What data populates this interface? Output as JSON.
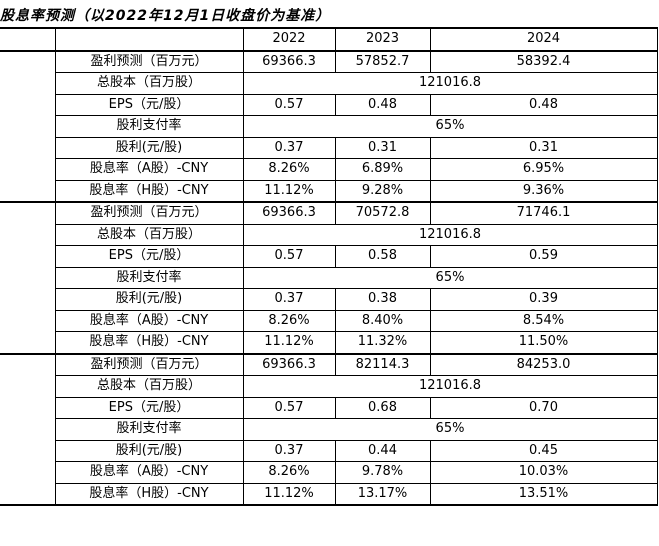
{
  "title": "股息率预测（以2022年12月1日收盘价为基准）",
  "header": {
    "years": [
      "2022",
      "2023",
      "2024"
    ]
  },
  "scenarios": [
    {
      "rows": [
        {
          "label": "盈利预测（百万元）",
          "values": [
            "69366.3",
            "57852.7",
            "58392.4"
          ]
        },
        {
          "label": "总股本（百万股）",
          "merged": "121016.8"
        },
        {
          "label": "EPS（元/股）",
          "values": [
            "0.57",
            "0.48",
            "0.48"
          ]
        },
        {
          "label": "股利支付率",
          "merged": "65%"
        },
        {
          "label": "股利(元/股)",
          "values": [
            "0.37",
            "0.31",
            "0.31"
          ]
        },
        {
          "label": "股息率（A股）-CNY",
          "values": [
            "8.26%",
            "6.89%",
            "6.95%"
          ]
        },
        {
          "label": "股息率（H股）-CNY",
          "values": [
            "11.12%",
            "9.28%",
            "9.36%"
          ]
        }
      ]
    },
    {
      "rows": [
        {
          "label": "盈利预测（百万元）",
          "values": [
            "69366.3",
            "70572.8",
            "71746.1"
          ]
        },
        {
          "label": "总股本（百万股）",
          "merged": "121016.8"
        },
        {
          "label": "EPS（元/股）",
          "values": [
            "0.57",
            "0.58",
            "0.59"
          ]
        },
        {
          "label": "股利支付率",
          "merged": "65%"
        },
        {
          "label": "股利(元/股)",
          "values": [
            "0.37",
            "0.38",
            "0.39"
          ]
        },
        {
          "label": "股息率（A股）-CNY",
          "values": [
            "8.26%",
            "8.40%",
            "8.54%"
          ]
        },
        {
          "label": "股息率（H股）-CNY",
          "values": [
            "11.12%",
            "11.32%",
            "11.50%"
          ]
        }
      ]
    },
    {
      "rows": [
        {
          "label": "盈利预测（百万元）",
          "values": [
            "69366.3",
            "82114.3",
            "84253.0"
          ]
        },
        {
          "label": "总股本（百万股）",
          "merged": "121016.8"
        },
        {
          "label": "EPS（元/股）",
          "values": [
            "0.57",
            "0.68",
            "0.70"
          ]
        },
        {
          "label": "股利支付率",
          "merged": "65%"
        },
        {
          "label": "股利(元/股)",
          "values": [
            "0.37",
            "0.44",
            "0.45"
          ]
        },
        {
          "label": "股息率（A股）-CNY",
          "values": [
            "8.26%",
            "9.78%",
            "10.03%"
          ]
        },
        {
          "label": "股息率（H股）-CNY",
          "values": [
            "11.12%",
            "13.17%",
            "13.51%"
          ]
        }
      ]
    }
  ]
}
